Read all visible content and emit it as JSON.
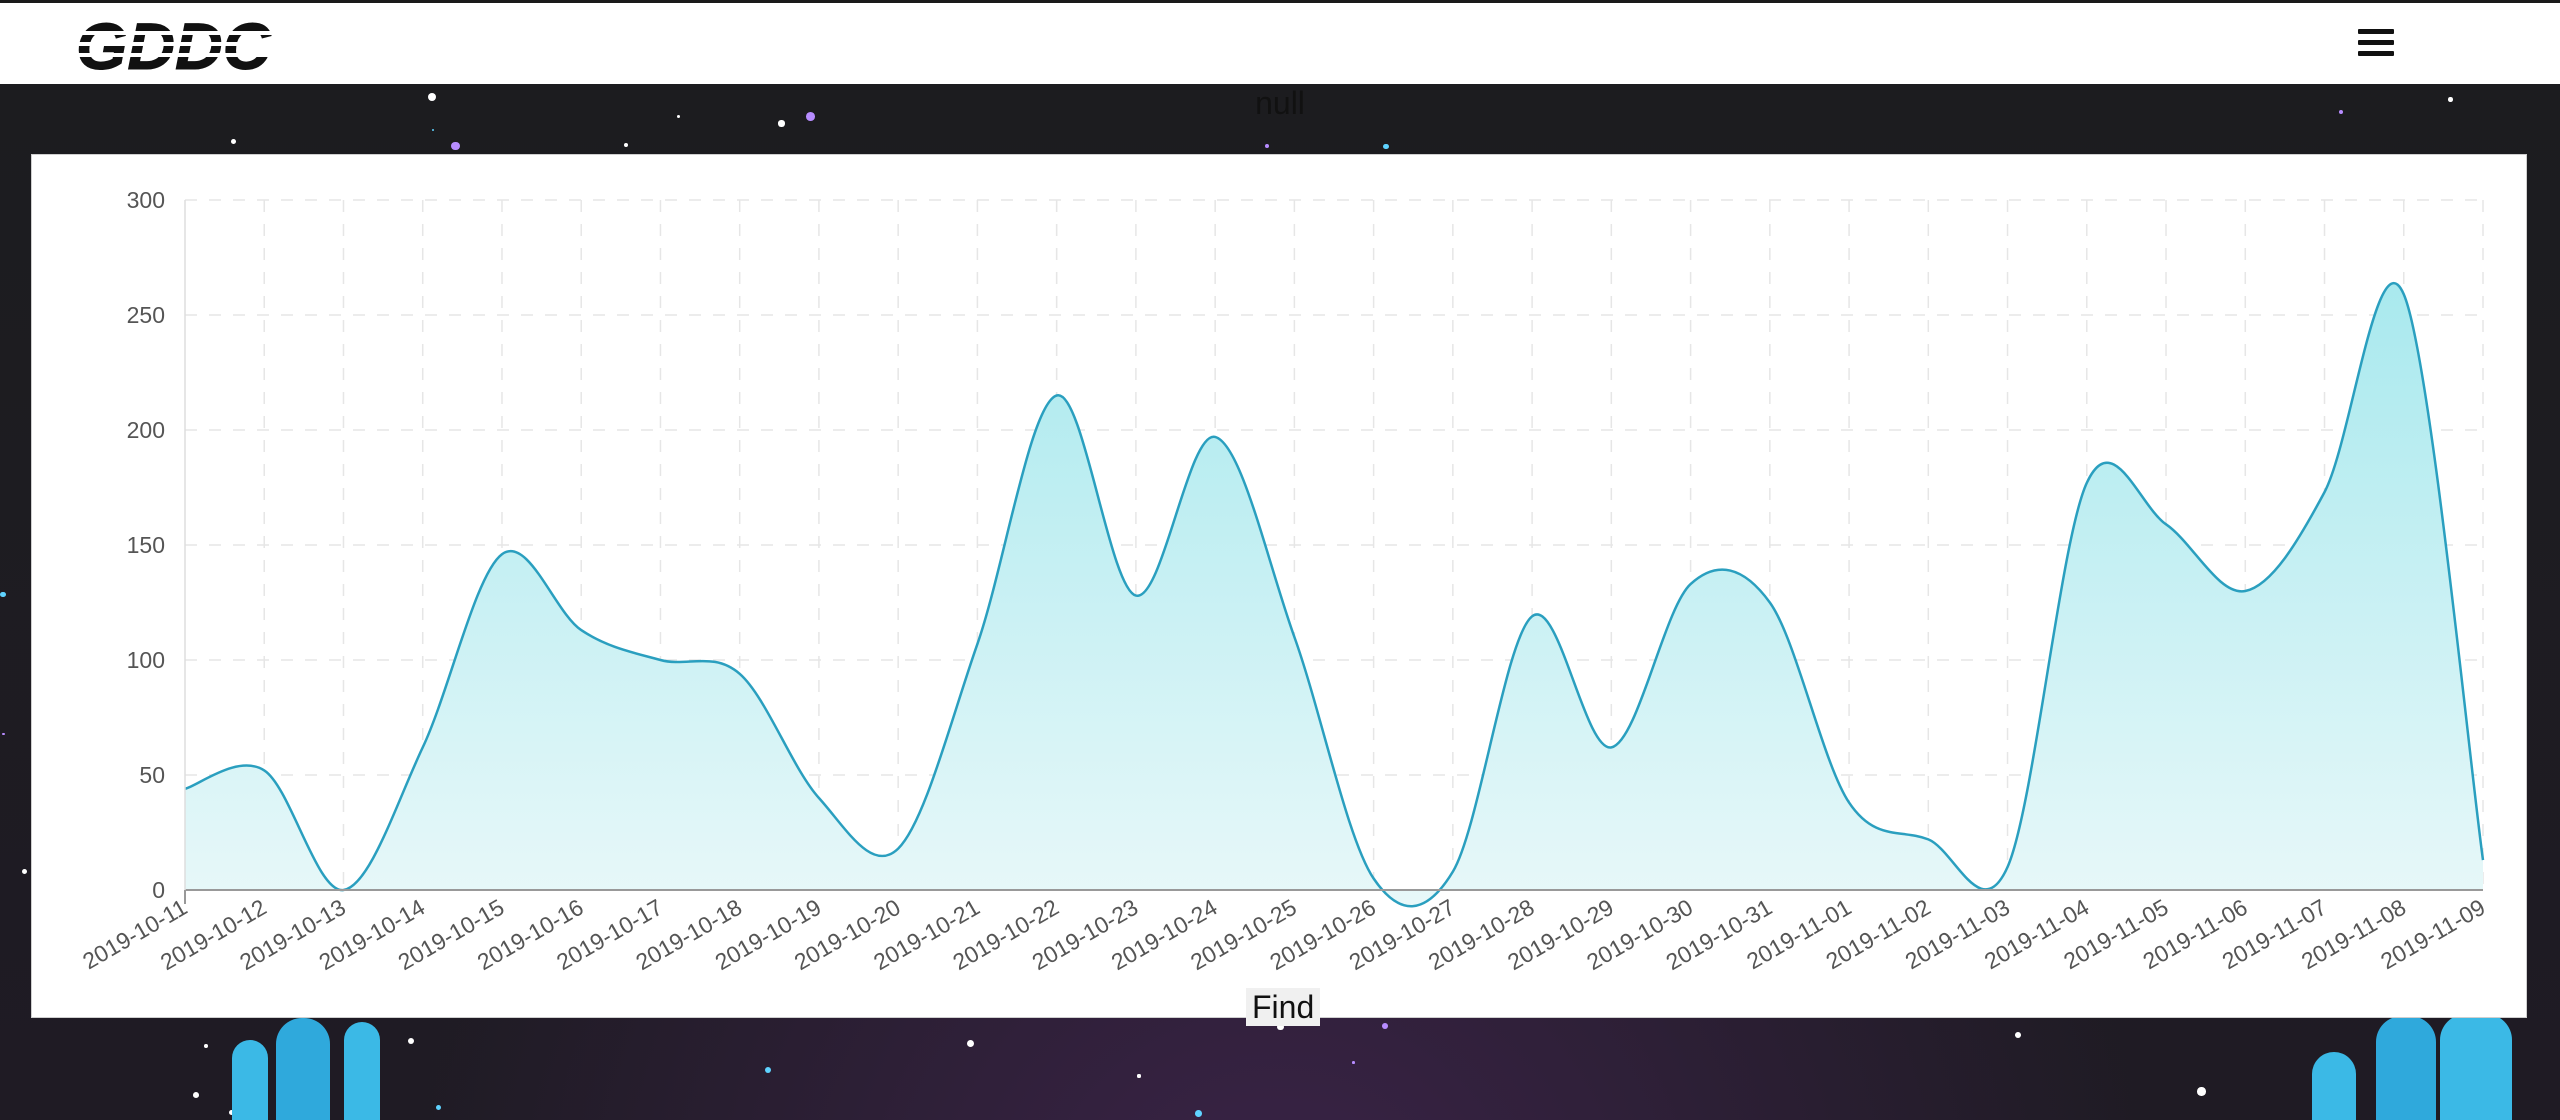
{
  "header": {
    "logo_text": "GDDC",
    "menu_icon": "hamburger-menu-icon"
  },
  "chart_title": "null",
  "find_label": "Find",
  "colors": {
    "line": "#2a9fbf",
    "fill_top": "#a9e9ee",
    "fill_bottom": "#e8f8f9",
    "axis_text": "#555555",
    "grid": "#e6e6e6",
    "background": "#1c1c1f",
    "cactus": "#3bb9e6"
  },
  "chart_data": {
    "type": "area",
    "smooth": true,
    "title": "null",
    "xlabel": "",
    "ylabel": "",
    "ylim": [
      0,
      300
    ],
    "yticks": [
      0,
      50,
      100,
      150,
      200,
      250,
      300
    ],
    "grid": true,
    "x": [
      "2019-10-11",
      "2019-10-12",
      "2019-10-13",
      "2019-10-14",
      "2019-10-15",
      "2019-10-16",
      "2019-10-17",
      "2019-10-18",
      "2019-10-19",
      "2019-10-20",
      "2019-10-21",
      "2019-10-22",
      "2019-10-23",
      "2019-10-24",
      "2019-10-25",
      "2019-10-26",
      "2019-10-27",
      "2019-10-28",
      "2019-10-29",
      "2019-10-30",
      "2019-10-31",
      "2019-11-01",
      "2019-11-02",
      "2019-11-03",
      "2019-11-04",
      "2019-11-05",
      "2019-11-06",
      "2019-11-07",
      "2019-11-08",
      "2019-11-09"
    ],
    "series": [
      {
        "values": [
          44,
          52,
          0,
          62,
          146,
          113,
          100,
          94,
          40,
          18,
          107,
          215,
          128,
          197,
          110,
          5,
          8,
          119,
          62,
          133,
          125,
          38,
          22,
          10,
          177,
          159,
          130,
          173,
          259,
          13
        ]
      }
    ]
  }
}
